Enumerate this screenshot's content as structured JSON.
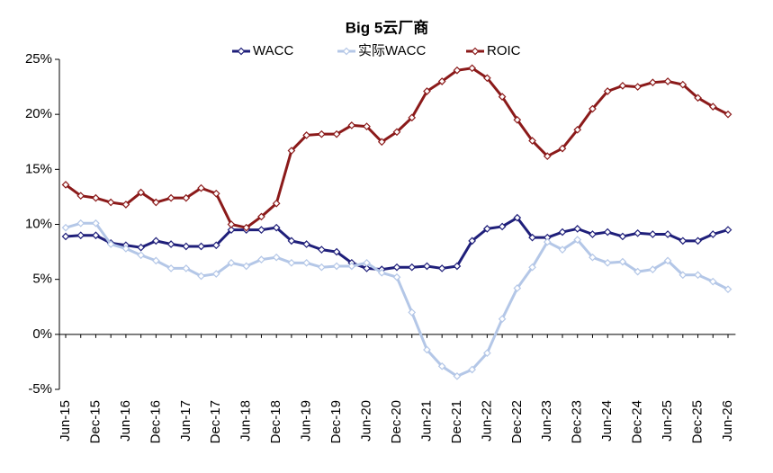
{
  "chart_data": {
    "type": "line",
    "title": "Big 5云厂商",
    "categories": [
      "Jun-15",
      null,
      "Dec-15",
      null,
      "Jun-16",
      null,
      "Dec-16",
      null,
      "Jun-17",
      null,
      "Dec-17",
      null,
      "Jun-18",
      null,
      "Dec-18",
      null,
      "Jun-19",
      null,
      "Dec-19",
      null,
      "Jun-20",
      null,
      "Dec-20",
      null,
      "Jun-21",
      null,
      "Dec-21",
      null,
      "Jun-22",
      null,
      "Dec-22",
      null,
      "Jun-23",
      null,
      "Dec-23",
      null,
      "Jun-24",
      null,
      "Dec-24",
      null,
      "Jun-25",
      null,
      "Dec-25",
      null,
      "Jun-26"
    ],
    "series": [
      {
        "name": "WACC",
        "color": "#1f1f7a",
        "values": [
          8.9,
          9.0,
          9.0,
          8.3,
          8.1,
          7.9,
          8.5,
          8.2,
          8.0,
          8.0,
          8.1,
          9.5,
          9.5,
          9.5,
          9.7,
          8.5,
          8.2,
          7.7,
          7.5,
          6.5,
          6.0,
          5.9,
          6.1,
          6.1,
          6.2,
          6.0,
          6.2,
          8.5,
          9.6,
          9.8,
          10.6,
          8.8,
          8.8,
          9.3,
          9.6,
          9.1,
          9.3,
          8.9,
          9.2,
          9.1,
          9.1,
          8.5,
          8.5,
          9.1,
          9.5
        ]
      },
      {
        "name": "实际WACC",
        "color": "#b4c7e7",
        "values": [
          9.7,
          10.1,
          10.1,
          8.2,
          7.8,
          7.2,
          6.7,
          6.0,
          6.0,
          5.3,
          5.5,
          6.5,
          6.2,
          6.8,
          7.0,
          6.5,
          6.5,
          6.1,
          6.2,
          6.2,
          6.5,
          5.6,
          5.2,
          2.0,
          -1.4,
          -2.9,
          -3.8,
          -3.2,
          -1.7,
          1.4,
          4.2,
          6.1,
          8.4,
          7.7,
          8.6,
          7.0,
          6.5,
          6.6,
          5.7,
          5.9,
          6.7,
          5.4,
          5.4,
          4.8,
          4.1
        ]
      },
      {
        "name": "ROIC",
        "color": "#8b1a1a",
        "values": [
          13.6,
          12.6,
          12.4,
          12.0,
          11.8,
          12.9,
          12.0,
          12.4,
          12.4,
          13.3,
          12.8,
          10.0,
          9.7,
          10.7,
          11.9,
          16.7,
          18.1,
          18.2,
          18.2,
          19.0,
          18.9,
          17.5,
          18.4,
          19.7,
          22.1,
          23.0,
          24.0,
          24.2,
          23.3,
          21.6,
          19.5,
          17.6,
          16.2,
          16.9,
          18.6,
          20.5,
          22.1,
          22.6,
          22.5,
          22.9,
          23.0,
          22.7,
          21.5,
          20.7,
          20.0
        ]
      }
    ],
    "ylim": [
      -5,
      25
    ],
    "yticks": [
      {
        "value": -5,
        "label": "-5%"
      },
      {
        "value": 0,
        "label": "0%"
      },
      {
        "value": 5,
        "label": "5%"
      },
      {
        "value": 10,
        "label": "10%"
      },
      {
        "value": 15,
        "label": "15%"
      },
      {
        "value": 20,
        "label": "20%"
      },
      {
        "value": 25,
        "label": "25%"
      }
    ],
    "negative_tick_color": "#e00000",
    "legend": "top"
  }
}
